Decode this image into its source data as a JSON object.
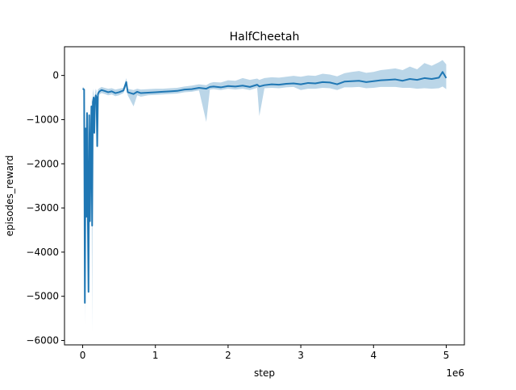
{
  "chart_data": {
    "type": "line",
    "title": "HalfCheetah",
    "xlabel": "step",
    "ylabel": "episodes_reward",
    "x_offset_label": "1e6",
    "xlim": [
      -250000,
      5250000
    ],
    "ylim": [
      -6100,
      650
    ],
    "x_ticks": [
      0,
      1000000,
      2000000,
      3000000,
      4000000,
      5000000
    ],
    "x_tick_labels": [
      "0",
      "1",
      "2",
      "3",
      "4",
      "5"
    ],
    "y_ticks": [
      0,
      -1000,
      -2000,
      -3000,
      -4000,
      -5000,
      -6000
    ],
    "y_tick_labels": [
      "0",
      "−1000",
      "−2000",
      "−3000",
      "−4000",
      "−5000",
      "−6000"
    ],
    "grid": false,
    "colors": {
      "line": "#1f77b4",
      "band": "#1f77b4"
    },
    "series": [
      {
        "x": [
          0,
          20000,
          30000,
          40000,
          50000,
          60000,
          70000,
          80000,
          90000,
          100000,
          110000,
          120000,
          130000,
          140000,
          150000,
          160000,
          170000,
          180000,
          190000,
          200000,
          210000,
          220000,
          240000,
          260000,
          300000,
          350000,
          400000,
          450000,
          500000,
          560000,
          600000,
          620000,
          700000,
          750000,
          800000,
          900000,
          1000000,
          1100000,
          1200000,
          1300000,
          1400000,
          1500000,
          1600000,
          1700000,
          1750000,
          1800000,
          1900000,
          2000000,
          2100000,
          2200000,
          2300000,
          2400000,
          2430000,
          2500000,
          2600000,
          2700000,
          2800000,
          2900000,
          3000000,
          3100000,
          3200000,
          3300000,
          3400000,
          3500000,
          3600000,
          3700000,
          3800000,
          3900000,
          4000000,
          4100000,
          4200000,
          4300000,
          4400000,
          4500000,
          4600000,
          4700000,
          4800000,
          4900000,
          4950000,
          5000000
        ],
        "y": [
          -300,
          -320,
          -5150,
          -1200,
          -3200,
          -850,
          -3000,
          -4900,
          -900,
          -3300,
          -1700,
          -700,
          -3400,
          -600,
          -500,
          -1300,
          -550,
          -450,
          -500,
          -1600,
          -420,
          -380,
          -350,
          -330,
          -350,
          -380,
          -360,
          -400,
          -380,
          -340,
          -150,
          -380,
          -420,
          -370,
          -400,
          -390,
          -380,
          -370,
          -360,
          -350,
          -320,
          -310,
          -280,
          -300,
          -260,
          -250,
          -270,
          -240,
          -250,
          -230,
          -260,
          -210,
          -250,
          -220,
          -200,
          -210,
          -190,
          -180,
          -200,
          -170,
          -180,
          -150,
          -160,
          -200,
          -140,
          -130,
          -120,
          -150,
          -130,
          -110,
          -100,
          -90,
          -120,
          -80,
          -100,
          -60,
          -80,
          -50,
          80,
          -60
        ],
        "y_low": [
          -300,
          -320,
          -5650,
          -1500,
          -3600,
          -1200,
          -3400,
          -5000,
          -1300,
          -3600,
          -2000,
          -1100,
          -5800,
          -800,
          -700,
          -1500,
          -700,
          -600,
          -600,
          -1700,
          -520,
          -450,
          -420,
          -400,
          -420,
          -450,
          -430,
          -470,
          -450,
          -400,
          -250,
          -450,
          -700,
          -450,
          -480,
          -450,
          -440,
          -430,
          -420,
          -410,
          -380,
          -370,
          -340,
          -1050,
          -320,
          -310,
          -330,
          -300,
          -320,
          -300,
          -330,
          -280,
          -920,
          -290,
          -280,
          -290,
          -270,
          -260,
          -330,
          -300,
          -300,
          -280,
          -290,
          -330,
          -270,
          -270,
          -260,
          -290,
          -280,
          -260,
          -260,
          -260,
          -280,
          -280,
          -300,
          -290,
          -300,
          -290,
          -250,
          -310
        ],
        "y_high": [
          -260,
          -280,
          -4800,
          -900,
          -2800,
          -550,
          -2700,
          -4400,
          -600,
          -3000,
          -1400,
          -400,
          -2900,
          -400,
          -300,
          -1100,
          -400,
          -300,
          -350,
          -1400,
          -320,
          -300,
          -280,
          -260,
          -280,
          -300,
          -290,
          -320,
          -300,
          -280,
          -60,
          -300,
          -330,
          -300,
          -320,
          -310,
          -300,
          -300,
          -290,
          -280,
          -250,
          -230,
          -200,
          -220,
          -170,
          -150,
          -160,
          -110,
          -120,
          -60,
          -100,
          -70,
          -100,
          -60,
          -40,
          -50,
          -30,
          -10,
          -30,
          0,
          -10,
          40,
          20,
          -20,
          50,
          80,
          100,
          60,
          80,
          120,
          140,
          160,
          120,
          200,
          140,
          280,
          220,
          300,
          350,
          250
        ]
      }
    ]
  }
}
